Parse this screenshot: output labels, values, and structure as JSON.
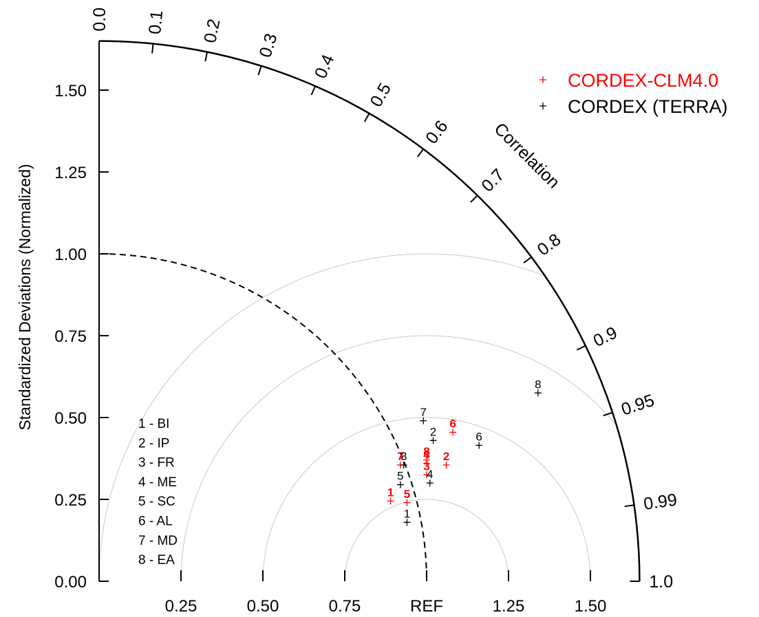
{
  "chart_data": {
    "type": "taylor-diagram",
    "ylabel": "Standardized Deviations (Normalized)",
    "correlation_label": "Correlation",
    "ref_label": "REF",
    "std_range": [
      0,
      1.65
    ],
    "y_ticks": [
      {
        "value": 0.0,
        "label": "0.00"
      },
      {
        "value": 0.25,
        "label": "0.25"
      },
      {
        "value": 0.5,
        "label": "0.50"
      },
      {
        "value": 0.75,
        "label": "0.75"
      },
      {
        "value": 1.0,
        "label": "1.00"
      },
      {
        "value": 1.25,
        "label": "1.25"
      },
      {
        "value": 1.5,
        "label": "1.50"
      }
    ],
    "x_ticks": [
      {
        "value": 0.25,
        "label": "0.25"
      },
      {
        "value": 0.5,
        "label": "0.50"
      },
      {
        "value": 0.75,
        "label": "0.75"
      },
      {
        "value": 1.0,
        "label": "REF"
      },
      {
        "value": 1.25,
        "label": "1.25"
      },
      {
        "value": 1.5,
        "label": "1.50"
      }
    ],
    "correlation_ticks": [
      {
        "value": 0.0,
        "label": "0.0"
      },
      {
        "value": 0.1,
        "label": "0.1"
      },
      {
        "value": 0.2,
        "label": "0.2"
      },
      {
        "value": 0.3,
        "label": "0.3"
      },
      {
        "value": 0.4,
        "label": "0.4"
      },
      {
        "value": 0.5,
        "label": "0.5"
      },
      {
        "value": 0.6,
        "label": "0.6"
      },
      {
        "value": 0.7,
        "label": "0.7"
      },
      {
        "value": 0.8,
        "label": "0.8"
      },
      {
        "value": 0.9,
        "label": "0.9"
      },
      {
        "value": 0.95,
        "label": "0.95"
      },
      {
        "value": 0.99,
        "label": "0.99"
      },
      {
        "value": 1.0,
        "label": "1.0"
      }
    ],
    "rms_contours": [
      0.25,
      0.5,
      0.75,
      1.0
    ],
    "reference_std": 1.0,
    "regions": [
      {
        "id": 1,
        "label": "1 - BI"
      },
      {
        "id": 2,
        "label": "2 - IP"
      },
      {
        "id": 3,
        "label": "3 - FR"
      },
      {
        "id": 4,
        "label": "4 - ME"
      },
      {
        "id": 5,
        "label": "5 - SC"
      },
      {
        "id": 6,
        "label": "6 - AL"
      },
      {
        "id": 7,
        "label": "7 - MD"
      },
      {
        "id": 8,
        "label": "8 - EA"
      }
    ],
    "legend_position": "top-right",
    "series": [
      {
        "name": "CORDEX-CLM4.0",
        "color": "#ff0000",
        "points": [
          {
            "id": "1",
            "x": 0.89,
            "y": 0.245
          },
          {
            "id": "2",
            "x": 1.06,
            "y": 0.355
          },
          {
            "id": "3",
            "x": 1.0,
            "y": 0.325
          },
          {
            "id": "4",
            "x": 1.0,
            "y": 0.36
          },
          {
            "id": "5",
            "x": 0.94,
            "y": 0.24
          },
          {
            "id": "6",
            "x": 1.08,
            "y": 0.455
          },
          {
            "id": "7",
            "x": 0.92,
            "y": 0.355
          },
          {
            "id": "8",
            "x": 1.0,
            "y": 0.37
          }
        ]
      },
      {
        "name": "CORDEX (TERRA)",
        "color": "#000000",
        "points": [
          {
            "id": "1",
            "x": 0.94,
            "y": 0.18
          },
          {
            "id": "2",
            "x": 1.02,
            "y": 0.43
          },
          {
            "id": "3",
            "x": 0.93,
            "y": 0.355
          },
          {
            "id": "4",
            "x": 1.01,
            "y": 0.3
          },
          {
            "id": "5",
            "x": 0.92,
            "y": 0.295
          },
          {
            "id": "6",
            "x": 1.16,
            "y": 0.415
          },
          {
            "id": "7",
            "x": 0.99,
            "y": 0.49
          },
          {
            "id": "8",
            "x": 1.34,
            "y": 0.575
          }
        ]
      }
    ]
  }
}
